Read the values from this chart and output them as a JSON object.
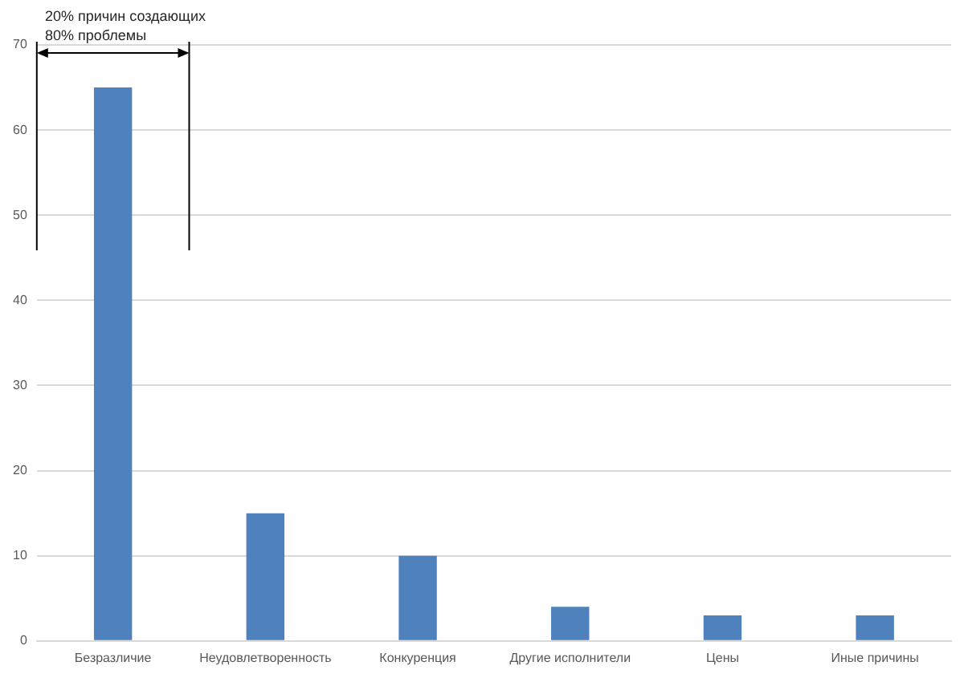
{
  "chart_data": {
    "type": "bar",
    "categories": [
      "Безразличие",
      "Неудовлетворенность",
      "Конкуренция",
      "Другие исполнители",
      "Цены",
      "Иные причины"
    ],
    "values": [
      65,
      15,
      10,
      4,
      3,
      3
    ],
    "color": "#4f81bd",
    "ylim": [
      0,
      70
    ],
    "yticks": [
      0,
      10,
      20,
      30,
      40,
      50,
      60,
      70
    ],
    "grid": "y",
    "legend": false,
    "annotations": [
      "20% причин создающих\n80% проблемы"
    ]
  }
}
